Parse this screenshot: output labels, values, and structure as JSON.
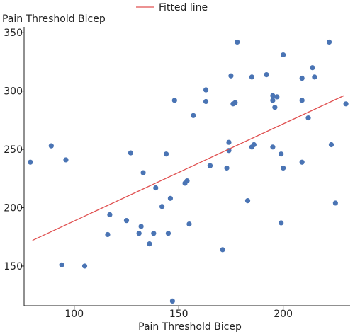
{
  "chart_data": {
    "type": "scatter",
    "ylabel": "Pain Threshold Bicep",
    "xlabel": "Pain Threshold Bicep",
    "legend": {
      "entries": [
        "Fitted line"
      ],
      "placement": "top"
    },
    "xlim": [
      76,
      232
    ],
    "ylim": [
      116,
      355
    ],
    "xticks": [
      100,
      150,
      200
    ],
    "yticks": [
      150,
      200,
      250,
      300,
      350
    ],
    "grid": false,
    "colors": {
      "points": "#4a74b4",
      "fit_line": "#e05050",
      "axis": "#222222"
    },
    "series": [
      {
        "kind": "points",
        "x": [
          79,
          89,
          94,
          96,
          105,
          116,
          117,
          125,
          127,
          131,
          132,
          133,
          136,
          138,
          139,
          142,
          144,
          145,
          146,
          147,
          148,
          153,
          154,
          155,
          157,
          163,
          163,
          165,
          165,
          171,
          173,
          174,
          174,
          175,
          176,
          177,
          178,
          183,
          185,
          185,
          186,
          192,
          195,
          195,
          195,
          196,
          197,
          199,
          199,
          200,
          200,
          209,
          209,
          209,
          212,
          214,
          215,
          222,
          223,
          225,
          230
        ],
        "y": [
          239,
          253,
          151,
          241,
          150,
          177,
          194,
          189,
          247,
          178,
          184,
          230,
          169,
          178,
          217,
          201,
          246,
          178,
          208,
          120,
          292,
          221,
          223,
          186,
          279,
          301,
          291,
          236,
          236,
          164,
          234,
          249,
          256,
          313,
          289,
          290,
          342,
          206,
          312,
          252,
          254,
          314,
          292,
          296,
          252,
          286,
          295,
          246,
          187,
          234,
          331,
          311,
          292,
          239,
          277,
          320,
          312,
          342,
          254,
          204,
          289
        ]
      },
      {
        "kind": "fit",
        "name": "Fitted line",
        "x": [
          80,
          229
        ],
        "y": [
          172,
          296
        ]
      }
    ]
  }
}
